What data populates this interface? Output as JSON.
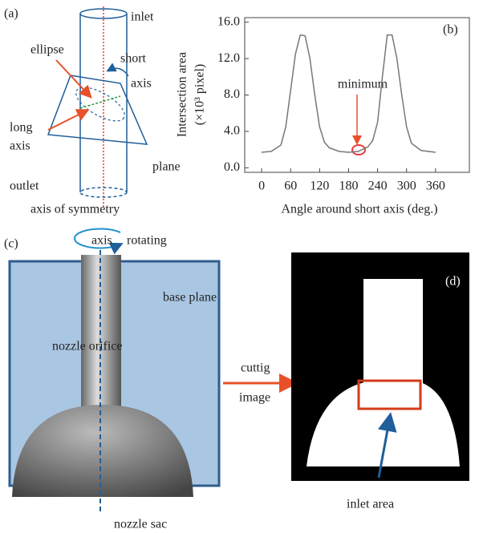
{
  "panel_labels": {
    "a": "(a)",
    "b": "(b)",
    "c": "(c)",
    "d": "(d)"
  },
  "panel_a": {
    "inlet": "inlet",
    "ellipse": "ellipse",
    "short": "short",
    "short_axis": "axis",
    "long": "long",
    "long_axis": "axis",
    "plane": "plane",
    "outlet": "outlet",
    "symmetry": "axis of symmetry"
  },
  "panel_c": {
    "axis": "axis",
    "rotating": "rotating",
    "base_plane": "base plane",
    "nozzle_orifice": "nozzle orifice",
    "cutting": "cuttig",
    "image": "image",
    "nozzle_sac": "nozzle sac"
  },
  "panel_d": {
    "inlet_area": "inlet area"
  },
  "chart_data": {
    "type": "line",
    "y_label": [
      "Intersection area",
      "(×10³ pixel)"
    ],
    "x_label": "Angle around short axis (deg.)",
    "annotation": "minimum",
    "x": [
      0,
      20,
      40,
      50,
      60,
      70,
      80,
      90,
      100,
      110,
      120,
      130,
      140,
      160,
      180,
      200,
      220,
      230,
      240,
      250,
      260,
      270,
      280,
      290,
      300,
      310,
      330,
      360
    ],
    "series": [
      {
        "color": "#777777",
        "values": [
          1.7,
          1.8,
          2.5,
          4.5,
          8.5,
          12.5,
          14.6,
          14.5,
          12.0,
          8.0,
          4.5,
          2.8,
          2.2,
          1.8,
          1.7,
          1.8,
          2.3,
          3.0,
          5.0,
          10.0,
          14.6,
          14.6,
          12.0,
          8.0,
          4.5,
          2.7,
          1.9,
          1.7
        ]
      }
    ],
    "xlim": [
      -35,
      430
    ],
    "ylim": [
      -0.5,
      16.5
    ],
    "xticks": [
      0,
      60,
      120,
      180,
      240,
      300,
      360
    ],
    "yticks": [
      {
        "value": 0,
        "label": "0.0"
      },
      {
        "value": 4,
        "label": "4.0"
      },
      {
        "value": 8,
        "label": "8.0"
      },
      {
        "value": 12,
        "label": "12.0"
      },
      {
        "value": 16,
        "label": "16.0"
      }
    ]
  }
}
